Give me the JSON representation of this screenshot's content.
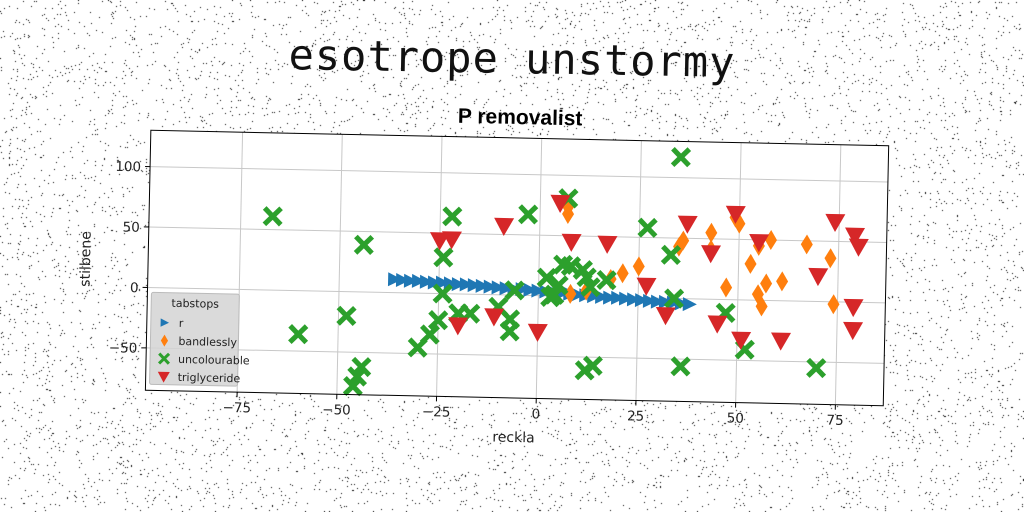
{
  "suptitle": "esotrope unstormy",
  "chart_data": {
    "type": "scatter",
    "title": "P removalist",
    "xlabel": "reckla",
    "ylabel": "stilbene",
    "xlim": [
      -98,
      87
    ],
    "ylim": [
      -85,
      130
    ],
    "xticks": [
      -75,
      -50,
      -25,
      0,
      25,
      50,
      75
    ],
    "yticks": [
      -50,
      0,
      50,
      100
    ],
    "grid": true,
    "legend": {
      "title": "tabstops",
      "placement": "lower-left"
    },
    "series": [
      {
        "name": "r",
        "marker": "triangle-right",
        "color": "#1f77b4",
        "points": [
          [
            -36,
            11
          ],
          [
            -34,
            10.5
          ],
          [
            -32,
            10
          ],
          [
            -30,
            10
          ],
          [
            -28,
            9.5
          ],
          [
            -26,
            9
          ],
          [
            -24,
            9
          ],
          [
            -22,
            8.5
          ],
          [
            -20,
            8
          ],
          [
            -18,
            8
          ],
          [
            -16,
            7.5
          ],
          [
            -14,
            7
          ],
          [
            -12,
            6.5
          ],
          [
            -10,
            6
          ],
          [
            -8,
            5.5
          ],
          [
            -6,
            5
          ],
          [
            -4,
            5
          ],
          [
            -2,
            4.5
          ],
          [
            0,
            4
          ],
          [
            2,
            3.5
          ],
          [
            4,
            3
          ],
          [
            6,
            2.5
          ],
          [
            8,
            2
          ],
          [
            10,
            1.5
          ],
          [
            12,
            1
          ],
          [
            14,
            0.5
          ],
          [
            16,
            0
          ],
          [
            18,
            -0.5
          ],
          [
            20,
            -0.5
          ],
          [
            22,
            -1
          ],
          [
            24,
            -1.5
          ],
          [
            26,
            -2
          ],
          [
            28,
            -2.5
          ],
          [
            30,
            -3
          ],
          [
            32,
            -3
          ],
          [
            34,
            -3.5
          ],
          [
            36,
            -4
          ],
          [
            38,
            -4.5
          ]
        ]
      },
      {
        "name": "bandlessly",
        "marker": "thin-diamond",
        "color": "#ff7f0e",
        "points": [
          [
            7,
            74
          ],
          [
            7,
            68
          ],
          [
            8,
            2
          ],
          [
            12,
            5
          ],
          [
            18,
            15
          ],
          [
            21,
            20
          ],
          [
            25,
            26
          ],
          [
            35,
            43
          ],
          [
            36,
            48
          ],
          [
            43,
            55
          ],
          [
            43,
            41
          ],
          [
            47,
            10
          ],
          [
            49,
            68
          ],
          [
            50,
            63
          ],
          [
            53,
            30
          ],
          [
            55,
            45
          ],
          [
            55,
            5
          ],
          [
            56,
            -5
          ],
          [
            57,
            14
          ],
          [
            58,
            50
          ],
          [
            61,
            16
          ],
          [
            67,
            47
          ],
          [
            73,
            36
          ],
          [
            74,
            -2
          ]
        ]
      },
      {
        "name": "uncolourable",
        "marker": "X",
        "color": "#2ca02c",
        "points": [
          [
            -67,
            61
          ],
          [
            -60,
            -36
          ],
          [
            -48,
            -20
          ],
          [
            -44,
            39
          ],
          [
            -44,
            -62
          ],
          [
            -45,
            -70
          ],
          [
            -46,
            -78
          ],
          [
            -30,
            -45
          ],
          [
            -27,
            -34
          ],
          [
            -25,
            -22
          ],
          [
            -24,
            30
          ],
          [
            -24,
            0
          ],
          [
            -22,
            64
          ],
          [
            -20,
            -16
          ],
          [
            -17,
            -16
          ],
          [
            -10,
            -10
          ],
          [
            -7,
            -20
          ],
          [
            -7,
            -30
          ],
          [
            -6,
            4
          ],
          [
            -3,
            67
          ],
          [
            2,
            15
          ],
          [
            3,
            -1
          ],
          [
            4,
            1
          ],
          [
            5,
            9
          ],
          [
            6,
            26
          ],
          [
            7,
            81
          ],
          [
            8,
            25
          ],
          [
            11,
            22
          ],
          [
            12,
            16
          ],
          [
            13,
            8
          ],
          [
            12,
            -61
          ],
          [
            14,
            -57
          ],
          [
            17,
            14
          ],
          [
            27,
            58
          ],
          [
            33,
            36
          ],
          [
            34,
            0
          ],
          [
            35,
            117
          ],
          [
            36,
            -56
          ],
          [
            47,
            -11
          ],
          [
            52,
            -41
          ],
          [
            70,
            -55
          ]
        ]
      },
      {
        "name": "triglyceride",
        "marker": "triangle-down",
        "color": "#d62728",
        "points": [
          [
            -25,
            44
          ],
          [
            -22,
            45
          ],
          [
            -20,
            -26
          ],
          [
            -11,
            -18
          ],
          [
            -9,
            57
          ],
          [
            0,
            -30
          ],
          [
            5,
            77
          ],
          [
            8,
            45
          ],
          [
            17,
            44
          ],
          [
            27,
            10
          ],
          [
            32,
            -14
          ],
          [
            37,
            62
          ],
          [
            43,
            38
          ],
          [
            45,
            -20
          ],
          [
            49,
            71
          ],
          [
            51,
            -33
          ],
          [
            55,
            48
          ],
          [
            61,
            -33
          ],
          [
            70,
            21
          ],
          [
            74,
            66
          ],
          [
            79,
            55
          ],
          [
            80,
            46
          ],
          [
            79,
            -4
          ],
          [
            79,
            -23
          ]
        ]
      }
    ]
  }
}
